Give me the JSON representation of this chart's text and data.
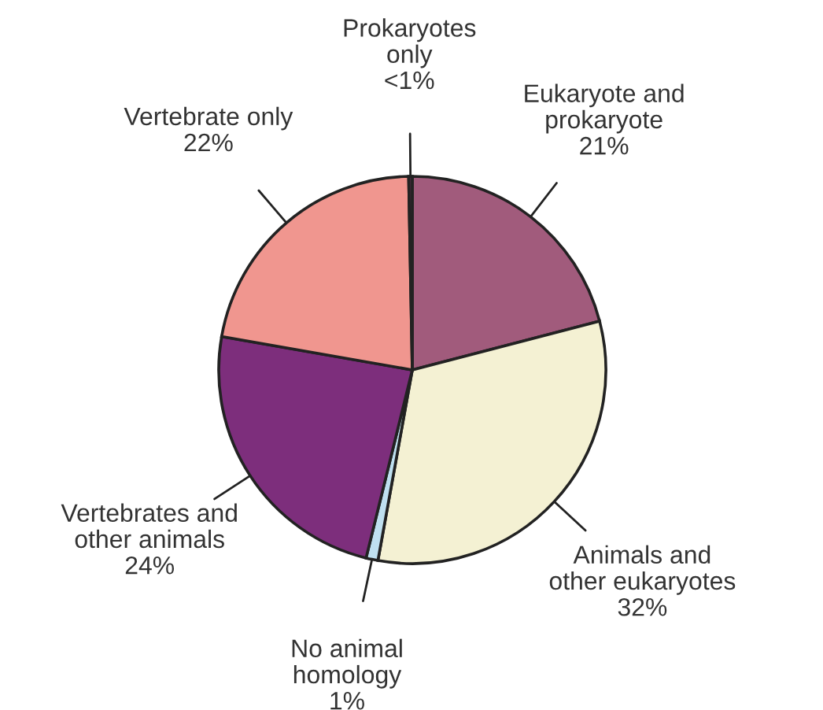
{
  "chart_data": {
    "type": "pie",
    "categories": [
      "Eukaryote and\nprokaryote",
      "Animals and\nother eukaryotes",
      "No animal\nhomology",
      "Vertebrates and\nother animals",
      "Vertebrate only",
      "Prokaryotes\nonly"
    ],
    "values": [
      21,
      32,
      1,
      24,
      22,
      0.3
    ],
    "value_labels": [
      "21%",
      "32%",
      "1%",
      "24%",
      "22%",
      "<1%"
    ],
    "colors": [
      "#a15b7c",
      "#f4f1d3",
      "#bfe0f0",
      "#7d2e7c",
      "#f0968f",
      "#4a2a40"
    ]
  }
}
